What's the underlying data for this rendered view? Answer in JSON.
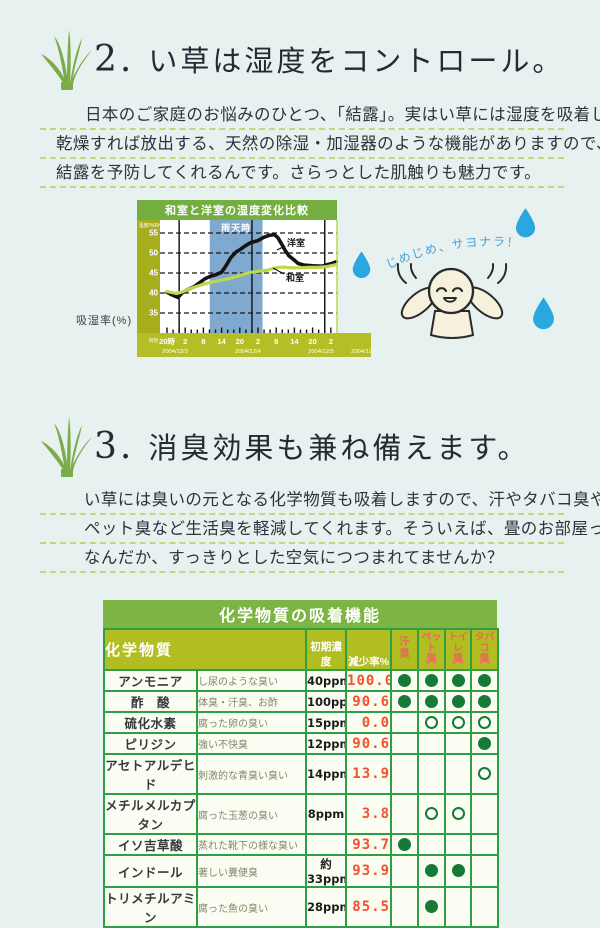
{
  "accent_colors": {
    "page_bg": "#e7f1f0",
    "grass_green": "#7cab49",
    "dotted_line": "#ccd37f",
    "chart_title_green": "#74ae41",
    "chart_olive": "#a6ae1e",
    "chart_bottom_olive": "#b4bf27",
    "rain_blue": "#7fa9cf",
    "washitsu_line": "#bcd94b",
    "yoshitsu_line": "#141414",
    "drop_blue": "#2aa7e1",
    "speech_blue": "#4aa0d8",
    "table_green": "#2f9e44",
    "table_title_bg": "#7cb544",
    "table_header_olive": "#b2bd22",
    "rate_red": "#f4502c",
    "odor_header_red": "#e96a57",
    "circle_green": "#157a38"
  },
  "section2": {
    "number": "2.",
    "title": "い草は湿度をコントロール。",
    "body_lines": [
      "日本のご家庭のお悩みのひとつ、「結露」。実はい草には湿度を吸着し",
      "乾燥すれば放出する、天然の除湿・加湿器のような機能がありますので、",
      "結露を予防してくれるんです。さらっとした肌触りも魅力です。"
    ],
    "y_axis_label": "吸湿率(%)",
    "speech": "じめじめ、サヨナラ！"
  },
  "chart_data": {
    "type": "line",
    "title": "和室と洋室の湿度変化比較",
    "unit_label": "湿度/%RH",
    "rain_label": "雨天時",
    "time_prefix": "時刻",
    "x_tick_labels": [
      "20時",
      "2",
      "8",
      "14",
      "20",
      "2",
      "8",
      "14",
      "20",
      "2"
    ],
    "dates": [
      "2004/12/3",
      "2004/12/4",
      "2004/12/5",
      "2004/12/6"
    ],
    "yticks": [
      55,
      50,
      45,
      40,
      35
    ],
    "ylim": [
      33,
      57
    ],
    "grid": "dashed-horizontal",
    "day_boundaries": [
      0.667,
      4.667,
      8.667
    ],
    "rain_band": [
      2.35,
      5.25
    ],
    "series": [
      {
        "name": "洋室",
        "color": "#141414",
        "width": 3.6,
        "points": [
          [
            0,
            40.2
          ],
          [
            0.25,
            39.6
          ],
          [
            0.45,
            39.2
          ],
          [
            0.6,
            38.9
          ],
          [
            0.9,
            40.3
          ],
          [
            1.2,
            41.0
          ],
          [
            1.5,
            41.6
          ],
          [
            1.8,
            42.6
          ],
          [
            2.1,
            43.6
          ],
          [
            2.4,
            44.2
          ],
          [
            2.7,
            44.6
          ],
          [
            3.0,
            45.2
          ],
          [
            3.2,
            46.5
          ],
          [
            3.5,
            48.8
          ],
          [
            3.8,
            50.3
          ],
          [
            4.0,
            50.8
          ],
          [
            4.3,
            51.8
          ],
          [
            4.6,
            52.6
          ],
          [
            5.0,
            53.1
          ],
          [
            5.3,
            53.9
          ],
          [
            5.6,
            54.4
          ],
          [
            5.9,
            54.6
          ],
          [
            6.1,
            53.8
          ],
          [
            6.3,
            52.2
          ],
          [
            6.5,
            50.6
          ],
          [
            6.7,
            49.3
          ],
          [
            7.0,
            48.2
          ],
          [
            7.2,
            47.4
          ],
          [
            7.5,
            47.0
          ],
          [
            8.0,
            46.8
          ],
          [
            8.5,
            46.7
          ],
          [
            9.0,
            47.3
          ],
          [
            9.3,
            47.8
          ]
        ]
      },
      {
        "name": "和室",
        "color": "#bcd94b",
        "width": 3.2,
        "points": [
          [
            0,
            40.4
          ],
          [
            0.5,
            39.9
          ],
          [
            0.8,
            40.2
          ],
          [
            1.2,
            41.0
          ],
          [
            1.6,
            41.6
          ],
          [
            2.0,
            42.2
          ],
          [
            2.5,
            42.8
          ],
          [
            3.0,
            43.2
          ],
          [
            3.5,
            43.7
          ],
          [
            4.0,
            44.4
          ],
          [
            4.5,
            45.1
          ],
          [
            5.0,
            45.4
          ],
          [
            5.5,
            45.7
          ],
          [
            6.0,
            46.3
          ],
          [
            6.3,
            46.5
          ],
          [
            6.8,
            46.3
          ],
          [
            7.3,
            46.3
          ],
          [
            7.8,
            46.4
          ],
          [
            8.3,
            46.4
          ],
          [
            8.8,
            46.6
          ],
          [
            9.3,
            47.1
          ]
        ]
      }
    ]
  },
  "section3": {
    "number": "3.",
    "title": "消臭効果も兼ね備えます。",
    "body_lines": [
      "い草には臭いの元となる化学物質も吸着しますので、汗やタバコ臭や",
      "ペット臭など生活臭を軽減してくれます。そういえば、畳のお部屋って、",
      "なんだか、すっきりとした空気につつまれてませんか？"
    ]
  },
  "table": {
    "title": "化学物質の吸着機能",
    "col_chemical": "化学物質",
    "col_conc": "初期濃度",
    "col_rate": "減少率%",
    "odor_cols": [
      {
        "l1": "汗",
        "l2": "臭"
      },
      {
        "l1": "ペット",
        "l2": "臭"
      },
      {
        "l1": "トイレ",
        "l2": "臭"
      },
      {
        "l1": "タバコ",
        "l2": "臭"
      }
    ],
    "rows": [
      {
        "name": "アンモニア",
        "desc": "し尿のような臭い",
        "conc": "40ppm",
        "rate": "100.0",
        "marks": [
          "f",
          "f",
          "f",
          "f"
        ]
      },
      {
        "name": "酢　酸",
        "desc": "体臭・汗臭、お酢",
        "conc": "100ppm",
        "rate": "90.6",
        "marks": [
          "f",
          "f",
          "f",
          "f"
        ]
      },
      {
        "name": "硫化水素",
        "desc": "腐った卵の臭い",
        "conc": "15ppm",
        "rate": "0.0",
        "marks": [
          "",
          "o",
          "o",
          "o"
        ]
      },
      {
        "name": "ピリジン",
        "desc": "強い不快臭",
        "conc": "12ppm",
        "rate": "90.6",
        "marks": [
          "",
          "",
          "",
          "f"
        ]
      },
      {
        "name": "アセトアルデヒド",
        "desc": "刺激的な青臭い臭い",
        "conc": "14ppm",
        "rate": "13.9",
        "marks": [
          "",
          "",
          "",
          "o"
        ]
      },
      {
        "name": "メチルメルカプタン",
        "desc": "腐った玉葱の臭い",
        "conc": "8ppm",
        "rate": "3.8",
        "marks": [
          "",
          "o",
          "o",
          ""
        ]
      },
      {
        "name": "イソ吉草酸",
        "desc": "蒸れた靴下の様な臭い",
        "conc": "",
        "rate": "93.7",
        "marks": [
          "f",
          "",
          "",
          ""
        ]
      },
      {
        "name": "インドール",
        "desc": "著しい糞便臭",
        "conc": "約33ppm",
        "rate": "93.9",
        "marks": [
          "",
          "f",
          "f",
          ""
        ]
      },
      {
        "name": "トリメチルアミン",
        "desc": "腐った魚の臭い",
        "conc": "28ppm",
        "rate": "85.5",
        "marks": [
          "",
          "f",
          "",
          ""
        ]
      }
    ]
  }
}
